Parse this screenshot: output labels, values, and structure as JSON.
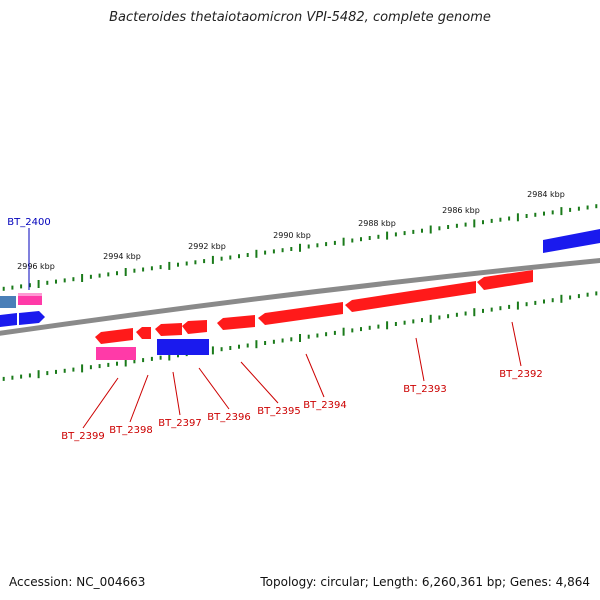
{
  "title": "Bacteroides thetaiotaomicron VPI-5482, complete genome",
  "footer": {
    "accession": "Accession: NC_004663",
    "summary": "Topology: circular; Length: 6,260,361 bp; Genes: 4,864"
  },
  "colors": {
    "backbone": "#8a8a8a",
    "tick": "#1a7a1a",
    "gene_red": "#ff1a1a",
    "gene_pink": "#ff3aa8",
    "gene_blue": "#1a1aee",
    "gene_steel": "#4a7fb8",
    "label_red": "#cc0000",
    "label_blue": "#0000bb",
    "tick_label": "#111111"
  },
  "scale_labels": [
    "2984 kbp",
    "2986 kbp",
    "2988 kbp",
    "2990 kbp",
    "2992 kbp",
    "2994 kbp",
    "2996 kbp"
  ],
  "genes": [
    {
      "label": "BT_2392",
      "strand": "reverse",
      "color": "red"
    },
    {
      "label": "BT_2393",
      "strand": "reverse",
      "color": "red"
    },
    {
      "label": "BT_2394",
      "strand": "reverse",
      "color": "red"
    },
    {
      "label": "BT_2395",
      "strand": "reverse",
      "color": "red"
    },
    {
      "label": "BT_2396",
      "strand": "reverse",
      "color": "red"
    },
    {
      "label": "BT_2397",
      "strand": "reverse",
      "color": "red"
    },
    {
      "label": "BT_2398",
      "strand": "reverse",
      "color": "red"
    },
    {
      "label": "BT_2399",
      "strand": "reverse",
      "color": "red"
    },
    {
      "label": "BT_2400",
      "strand": "forward",
      "color": "blue"
    }
  ]
}
